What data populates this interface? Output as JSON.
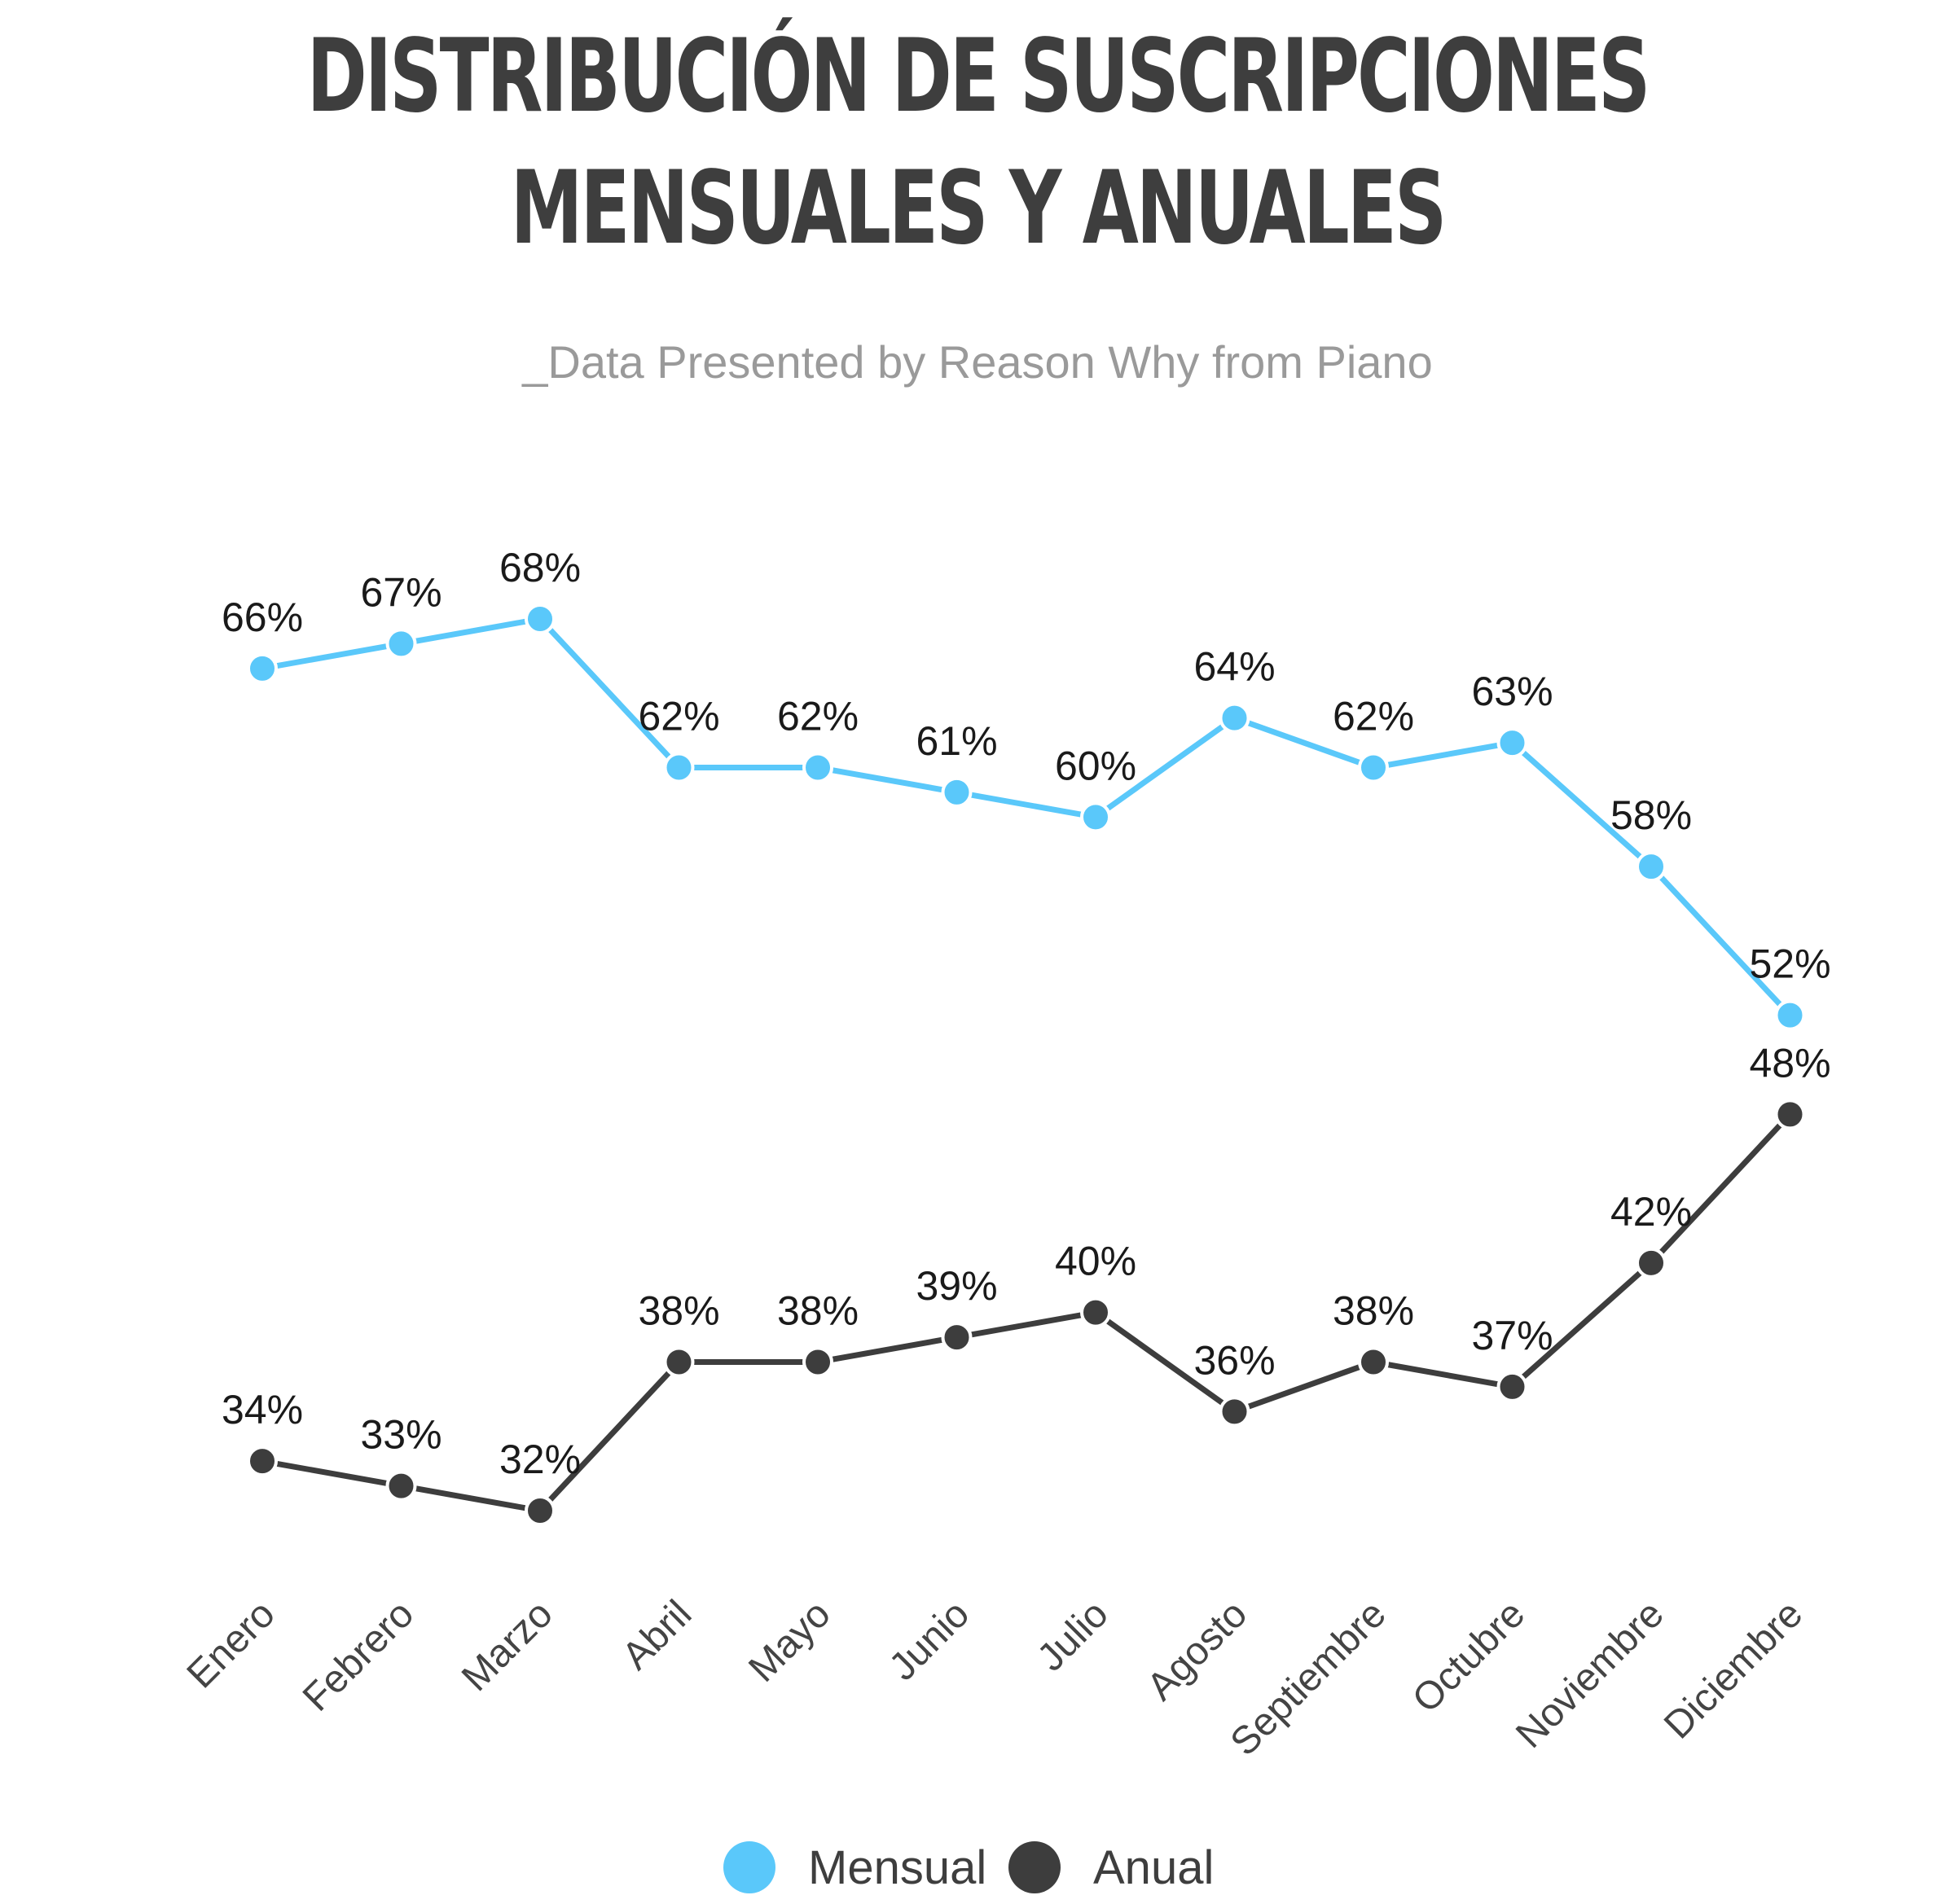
{
  "header": {
    "title_line1": "DISTRIBUCIÓN DE SUSCRIPCIONES",
    "title_line2": "MENSUALES Y ANUALES",
    "subtitle": "_Data Presented by Reason Why from Piano"
  },
  "colors": {
    "mensual": "#5ac8fa",
    "anual": "#3d3d3d",
    "label_text": "#1a1a1a",
    "tick_text": "#444444"
  },
  "chart_data": {
    "type": "line",
    "categories": [
      "Enero",
      "Febrero",
      "Marzo",
      "Abril",
      "Mayo",
      "Junio",
      "Julio",
      "Agosto",
      "Septiembre",
      "Octubre",
      "Noviembre",
      "Diciembre"
    ],
    "series": [
      {
        "name": "Mensual",
        "values": [
          66,
          67,
          68,
          62,
          62,
          61,
          60,
          64,
          62,
          63,
          58,
          52
        ],
        "labels": [
          "66%",
          "67%",
          "68%",
          "62%",
          "62%",
          "61%",
          "60%",
          "64%",
          "62%",
          "63%",
          "58%",
          "52%"
        ]
      },
      {
        "name": "Anual",
        "values": [
          34,
          33,
          32,
          38,
          38,
          39,
          40,
          36,
          38,
          37,
          42,
          48
        ],
        "labels": [
          "34%",
          "33%",
          "32%",
          "38%",
          "38%",
          "39%",
          "40%",
          "36%",
          "38%",
          "37%",
          "42%",
          "48%"
        ]
      }
    ],
    "title": "DISTRIBUCIÓN DE SUSCRIPCIONES MENSUALES Y ANUALES",
    "subtitle": "_Data Presented by Reason Why from Piano",
    "xlabel": "",
    "ylabel": "",
    "ylim": [
      32,
      68
    ],
    "grid": false,
    "legend": "bottom-center",
    "data_labels": true
  }
}
